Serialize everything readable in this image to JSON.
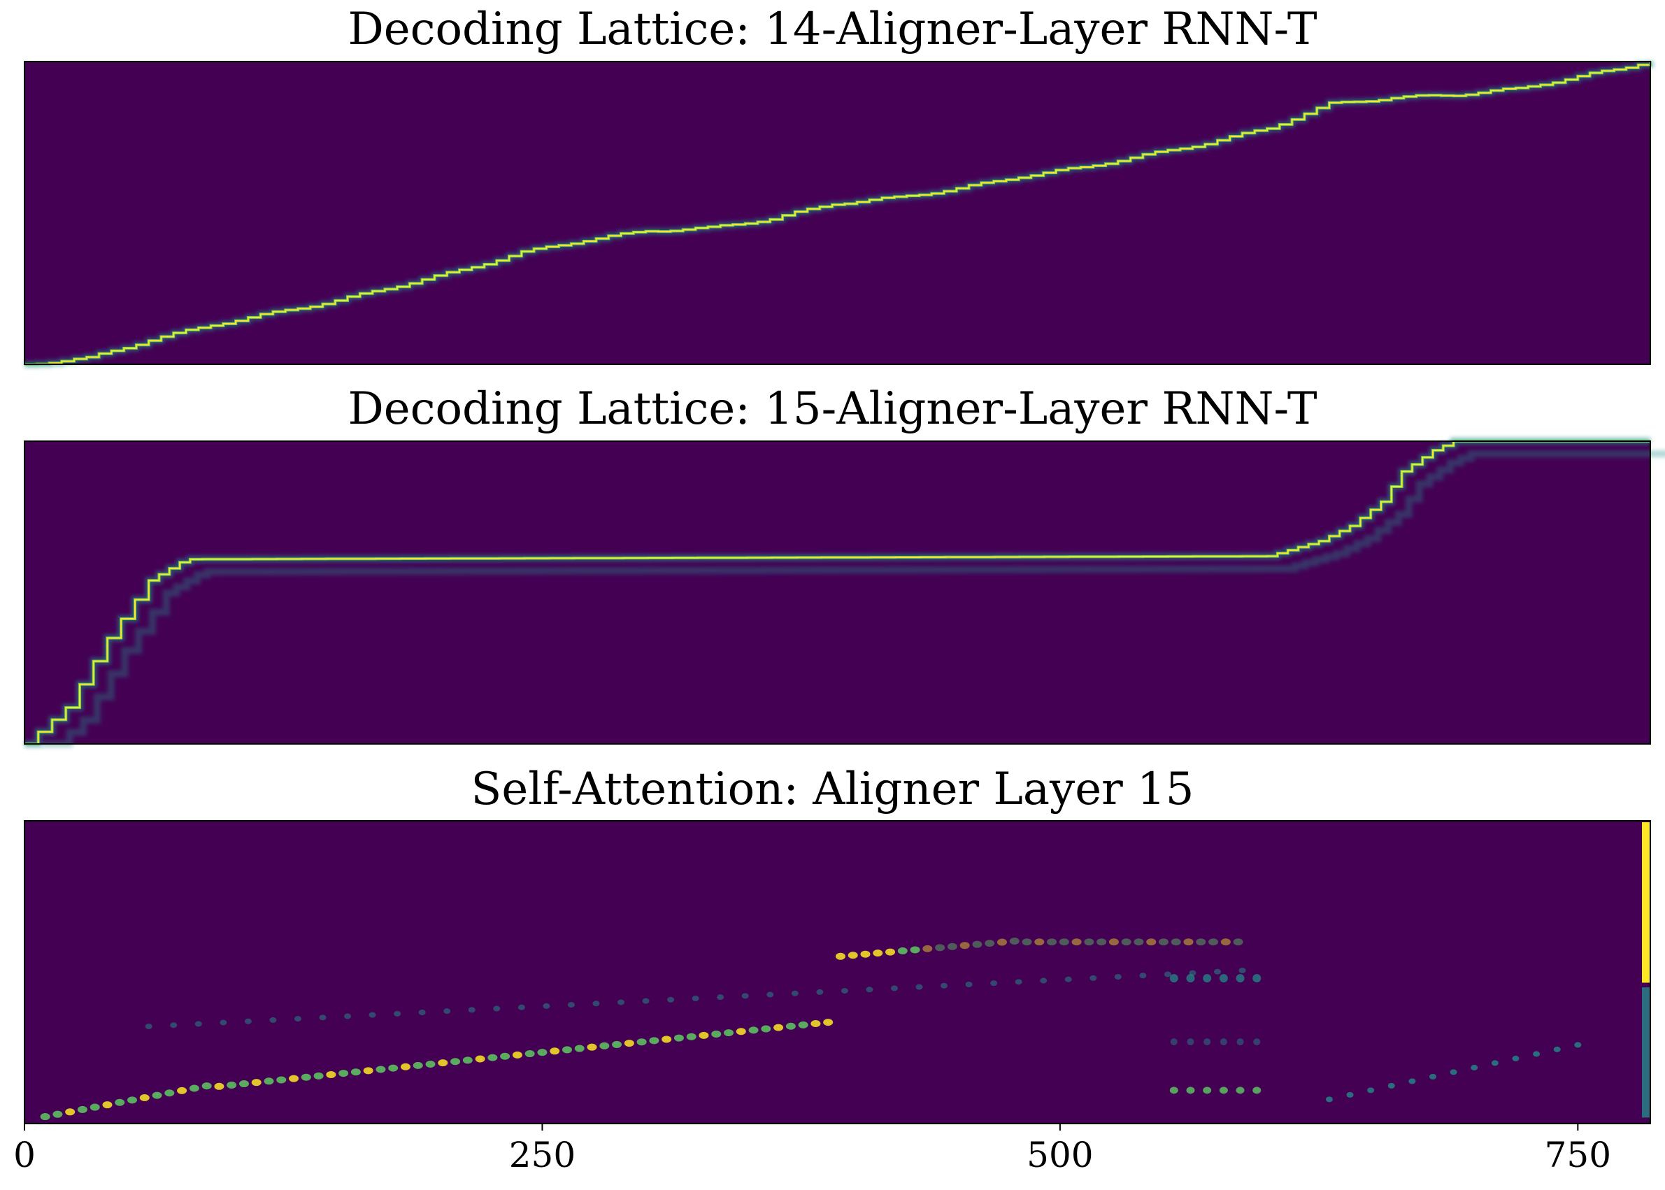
{
  "chart_data": [
    {
      "type": "heatmap",
      "title": "Decoding Lattice: 14-Aligner-Layer RNN-T",
      "colormap": "viridis",
      "description_path": {
        "x": [
          0,
          30,
          60,
          90,
          120,
          150,
          180,
          210,
          240,
          270,
          300,
          330,
          360,
          390,
          420,
          450,
          480,
          510,
          540,
          570,
          600,
          630,
          660,
          690,
          720,
          750,
          785
        ],
        "y_fraction_from_bottom": [
          0.0,
          0.02,
          0.08,
          0.13,
          0.17,
          0.21,
          0.26,
          0.31,
          0.37,
          0.41,
          0.44,
          0.45,
          0.48,
          0.53,
          0.55,
          0.58,
          0.62,
          0.65,
          0.69,
          0.73,
          0.78,
          0.86,
          0.88,
          0.89,
          0.91,
          0.95,
          1.0
        ]
      }
    },
    {
      "type": "heatmap",
      "title": "Decoding Lattice: 15-Aligner-Layer RNN-T",
      "colormap": "viridis",
      "description_path": {
        "x": [
          0,
          20,
          40,
          60,
          75,
          80,
          600,
          610,
          625,
          640,
          655,
          665,
          680,
          690,
          785
        ],
        "y_fraction_from_bottom": [
          0.0,
          0.12,
          0.35,
          0.54,
          0.6,
          0.61,
          0.62,
          0.64,
          0.67,
          0.72,
          0.8,
          0.9,
          0.97,
          1.0,
          1.0
        ]
      }
    },
    {
      "type": "heatmap",
      "title": "Self-Attention: Aligner Layer 15",
      "colormap": "viridis",
      "xticks": [
        0,
        250,
        500,
        750
      ],
      "xlim": [
        0,
        785
      ]
    }
  ],
  "colors": {
    "background": "#440154",
    "line_high": "#fde725",
    "line_mid": "#5ec962",
    "line_low": "#21918c"
  }
}
